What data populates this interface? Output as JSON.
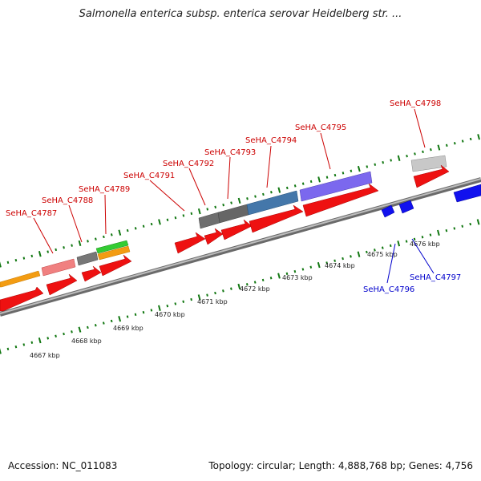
{
  "title": "Salmonella enterica subsp. enterica serovar Heidelberg str. ...",
  "footer": {
    "accession": "Accession: NC_011083",
    "summary": "Topology: circular; Length: 4,888,768 bp; Genes: 4,756"
  },
  "colors": {
    "forward_label": "#cc0000",
    "reverse_label": "#0000cc",
    "cds": "#ee1111",
    "reverse_cds": "#1111ee",
    "backbone": "#888888",
    "ticks": "#117711"
  },
  "scale_labels": [
    "4667 kbp",
    "4668 kbp",
    "4669 kbp",
    "4670 kbp",
    "4671 kbp",
    "4672 kbp",
    "4673 kbp",
    "4674 kbp",
    "4675 kbp",
    "4676 kbp"
  ],
  "gene_labels_forward": [
    "SeHA_C4787",
    "SeHA_C4788",
    "SeHA_C4789",
    "SeHA_C4791",
    "SeHA_C4792",
    "SeHA_C4793",
    "SeHA_C4794",
    "SeHA_C4795",
    "SeHA_C4798"
  ],
  "gene_labels_reverse": [
    "SeHA_C4796",
    "SeHA_C4797"
  ]
}
